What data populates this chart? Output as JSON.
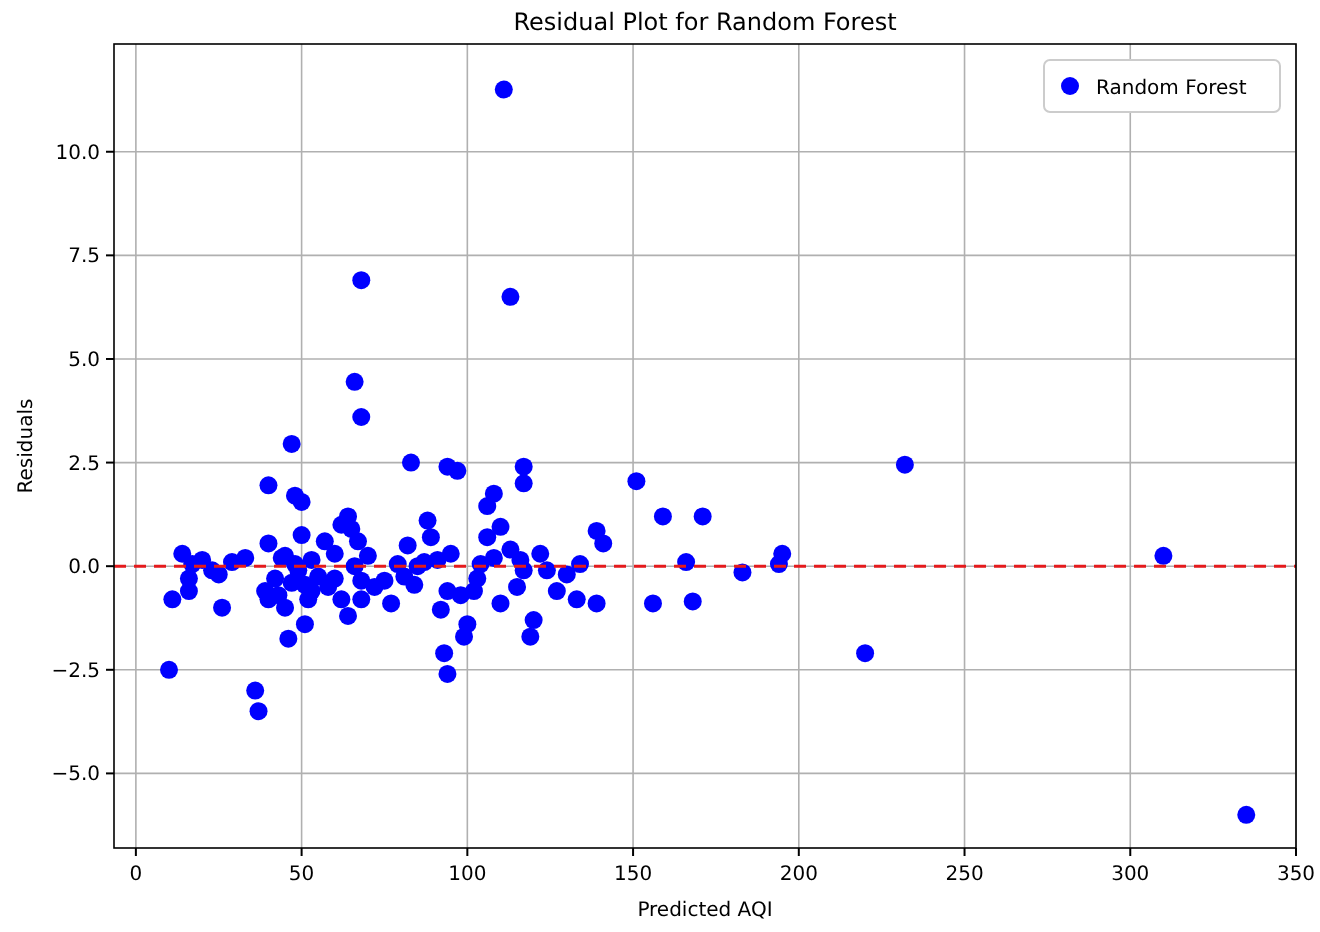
{
  "chart_data": {
    "type": "scatter",
    "title": "Residual Plot for Random Forest",
    "xlabel": "Predicted AQI",
    "ylabel": "Residuals",
    "xlim": [
      -6.6,
      350
    ],
    "xticks": [
      0,
      50,
      100,
      150,
      200,
      250,
      300,
      350
    ],
    "ylim": [
      -6.8,
      12.6
    ],
    "yticks": [
      {
        "value": -5,
        "label": "−5.0"
      },
      {
        "value": -2.5,
        "label": "−2.5"
      },
      {
        "value": 0,
        "label": "0.0"
      },
      {
        "value": 2.5,
        "label": "2.5"
      },
      {
        "value": 5,
        "label": "5.0"
      },
      {
        "value": 7.5,
        "label": "7.5"
      },
      {
        "value": 10,
        "label": "10.0"
      }
    ],
    "grid": true,
    "legend": "top right",
    "marker": "circle",
    "ref_lines": [
      {
        "axis": "y",
        "value": 0,
        "color": "#e41a1c",
        "line_style": "dashed"
      }
    ],
    "series": [
      {
        "name": "Random Forest",
        "color": "#0000ff",
        "x": [
          10,
          11,
          14,
          16,
          16,
          17,
          20,
          23,
          26,
          25,
          29,
          33,
          36,
          37,
          40,
          40,
          39,
          40,
          43,
          45,
          46,
          48,
          47,
          48,
          50,
          50,
          51,
          52,
          51,
          49,
          53,
          55,
          60,
          60,
          62,
          64,
          62,
          64,
          66,
          65,
          67,
          68,
          68,
          66,
          68,
          68,
          70,
          75,
          77,
          79,
          81,
          82,
          83,
          84,
          85,
          88,
          89,
          91,
          92,
          93,
          94,
          94,
          97,
          94,
          95,
          98,
          99,
          100,
          102,
          104,
          106,
          106,
          108,
          111,
          113,
          110,
          110,
          113,
          116,
          117,
          117,
          117,
          119,
          120,
          124,
          127,
          130,
          133,
          134,
          139,
          141,
          139,
          151,
          156,
          159,
          166,
          168,
          171,
          183,
          194,
          195,
          220,
          232,
          310,
          335,
          42,
          44,
          47,
          57,
          58,
          72,
          87,
          103,
          108,
          115,
          122,
          45,
          53
        ],
        "values": [
          -2.5,
          -0.8,
          0.3,
          -0.3,
          -0.6,
          0.05,
          0.15,
          -0.1,
          -1.0,
          -0.2,
          0.1,
          0.2,
          -3.0,
          -3.5,
          1.95,
          0.55,
          -0.6,
          -0.8,
          -0.7,
          -1.0,
          -1.75,
          0.05,
          2.95,
          1.7,
          1.55,
          0.75,
          -0.45,
          -0.8,
          -1.4,
          -0.1,
          0.15,
          -0.25,
          0.3,
          -0.3,
          1.0,
          1.2,
          -0.8,
          -1.2,
          0.0,
          0.9,
          0.6,
          -0.35,
          -0.8,
          4.45,
          3.6,
          6.9,
          0.25,
          -0.35,
          -0.9,
          0.05,
          -0.25,
          0.5,
          2.5,
          -0.45,
          0.0,
          1.1,
          0.7,
          0.15,
          -1.05,
          -2.1,
          -2.6,
          2.4,
          2.3,
          -0.6,
          0.3,
          -0.7,
          -1.7,
          -1.4,
          -0.6,
          0.05,
          0.7,
          1.45,
          1.75,
          11.5,
          6.5,
          0.95,
          -0.9,
          0.4,
          0.15,
          2.4,
          2.0,
          -0.1,
          -1.7,
          -1.3,
          -0.1,
          -0.6,
          -0.2,
          -0.8,
          0.05,
          0.85,
          0.55,
          -0.9,
          2.05,
          -0.9,
          1.2,
          0.1,
          -0.85,
          1.2,
          -0.15,
          0.05,
          0.3,
          -2.1,
          2.45,
          0.25,
          -6.0,
          -0.3,
          0.2,
          -0.4,
          0.6,
          -0.5,
          -0.5,
          0.1,
          -0.3,
          0.2,
          -0.5,
          0.3,
          0.25,
          -0.6
        ]
      }
    ]
  }
}
